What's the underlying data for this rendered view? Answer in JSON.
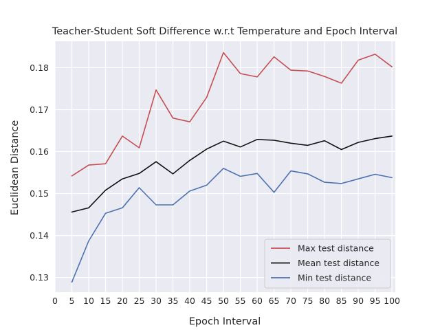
{
  "chart_data": {
    "type": "line",
    "title": "Teacher-Student Soft Difference w.r.t Temperature and Epoch Interval",
    "xlabel": "Epoch Interval",
    "ylabel": "Euclidean Distance",
    "xlim": [
      0,
      101
    ],
    "ylim": [
      0.1265,
      0.1863
    ],
    "xticks": [
      0,
      5,
      10,
      15,
      20,
      25,
      30,
      35,
      40,
      45,
      50,
      55,
      60,
      65,
      70,
      75,
      80,
      85,
      90,
      95,
      100
    ],
    "yticks": [
      0.13,
      0.14,
      0.15,
      0.16,
      0.17,
      0.18
    ],
    "ytick_labels": [
      "0.13",
      "0.14",
      "0.15",
      "0.16",
      "0.17",
      "0.18"
    ],
    "grid": true,
    "legend_position": "bottom-right",
    "x": [
      5,
      10,
      15,
      20,
      25,
      30,
      35,
      40,
      45,
      50,
      55,
      60,
      65,
      70,
      75,
      80,
      85,
      90,
      95,
      100
    ],
    "series": [
      {
        "name": "Max test distance",
        "color": "#c44e52",
        "values": [
          0.1542,
          0.1568,
          0.1571,
          0.1637,
          0.1609,
          0.1747,
          0.168,
          0.1671,
          0.1729,
          0.1836,
          0.1786,
          0.1778,
          0.1826,
          0.1794,
          0.1792,
          0.1779,
          0.1763,
          0.1818,
          0.1832,
          0.1802
        ]
      },
      {
        "name": "Mean test distance",
        "color": "#111111",
        "values": [
          0.1456,
          0.1466,
          0.1508,
          0.1535,
          0.1548,
          0.1576,
          0.1547,
          0.1579,
          0.1606,
          0.1625,
          0.1611,
          0.1629,
          0.1627,
          0.162,
          0.1615,
          0.1626,
          0.1605,
          0.1622,
          0.1631,
          0.1637
        ]
      },
      {
        "name": "Min test distance",
        "color": "#4c72b0",
        "values": [
          0.1289,
          0.1387,
          0.1453,
          0.1466,
          0.1514,
          0.1473,
          0.1473,
          0.1506,
          0.152,
          0.156,
          0.1541,
          0.1548,
          0.1503,
          0.1554,
          0.1547,
          0.1527,
          0.1524,
          0.1535,
          0.1546,
          0.1538
        ]
      }
    ]
  }
}
